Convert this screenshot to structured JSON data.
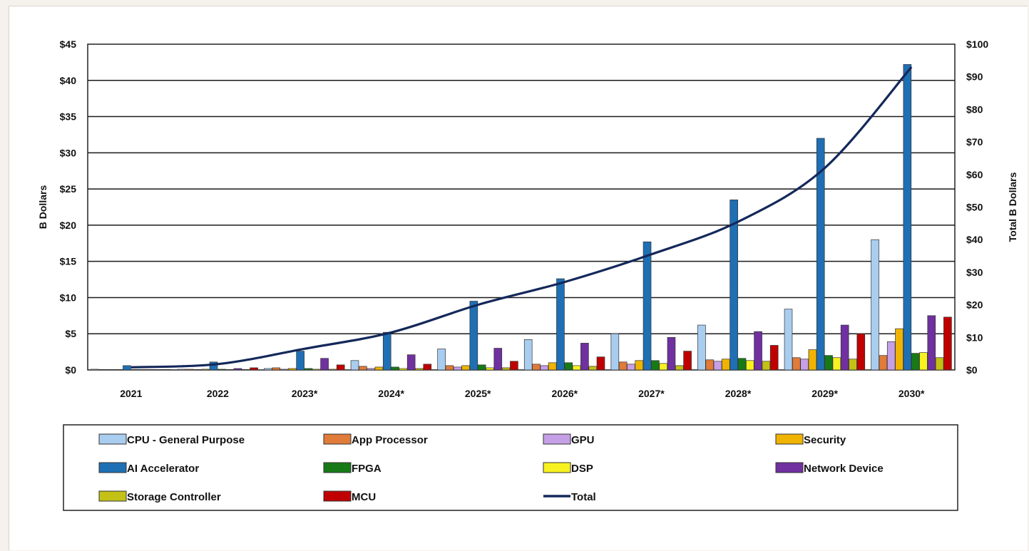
{
  "chart_data": {
    "type": "bar",
    "title": "",
    "xlabel": "",
    "ylabel": "B Dollars",
    "y2label": "Total B Dollars",
    "ylim": [
      0,
      45
    ],
    "y2lim": [
      0,
      100
    ],
    "yticks": [
      "$0",
      "$5",
      "$10",
      "$15",
      "$20",
      "$25",
      "$30",
      "$35",
      "$40",
      "$45"
    ],
    "y2ticks": [
      "$0",
      "$10",
      "$20",
      "$30",
      "$40",
      "$50",
      "$60",
      "$70",
      "$80",
      "$90",
      "$100"
    ],
    "grid": true,
    "legend_position": "bottom",
    "categories": [
      "2021",
      "2022",
      "2023*",
      "2024*",
      "2025*",
      "2026*",
      "2027*",
      "2028*",
      "2029*",
      "2030*"
    ],
    "series": [
      {
        "name": "CPU - General Purpose",
        "color": "#a9cdef",
        "values": [
          0.1,
          0.1,
          0.2,
          1.3,
          2.9,
          4.2,
          5.0,
          6.2,
          8.4,
          18.0
        ]
      },
      {
        "name": "AI Accelerator",
        "color": "#1f6fb4",
        "values": [
          0.6,
          1.1,
          2.6,
          5.2,
          9.5,
          12.6,
          17.7,
          23.5,
          32.0,
          42.2
        ]
      },
      {
        "name": "Storage Controller",
        "color": "#c3c116",
        "values": [
          0.05,
          0.05,
          0.1,
          0.2,
          0.3,
          0.5,
          0.6,
          1.2,
          1.5,
          1.7
        ]
      },
      {
        "name": "App Processor",
        "color": "#e07b39",
        "values": [
          0.05,
          0.1,
          0.3,
          0.5,
          0.6,
          0.8,
          1.1,
          1.4,
          1.7,
          2.0
        ]
      },
      {
        "name": "FPGA",
        "color": "#177a17",
        "values": [
          0.05,
          0.1,
          0.2,
          0.4,
          0.7,
          1.0,
          1.3,
          1.6,
          2.0,
          2.3
        ]
      },
      {
        "name": "MCU",
        "color": "#c00000",
        "values": [
          0.05,
          0.3,
          0.7,
          0.8,
          1.2,
          1.8,
          2.6,
          3.4,
          5.0,
          7.3
        ]
      },
      {
        "name": "GPU",
        "color": "#c6a0e6",
        "values": [
          0.05,
          0.05,
          0.1,
          0.2,
          0.4,
          0.6,
          0.8,
          1.2,
          1.5,
          3.9
        ]
      },
      {
        "name": "DSP",
        "color": "#f7f220",
        "values": [
          0.05,
          0.05,
          0.1,
          0.2,
          0.3,
          0.6,
          0.9,
          1.3,
          1.7,
          2.4
        ]
      },
      {
        "name": "Security",
        "color": "#f0b400",
        "values": [
          0.05,
          0.1,
          0.2,
          0.4,
          0.6,
          1.0,
          1.3,
          1.5,
          2.8,
          5.7
        ]
      },
      {
        "name": "Network Device",
        "color": "#7030a0",
        "values": [
          0.05,
          0.2,
          1.6,
          2.1,
          3.0,
          3.7,
          4.5,
          5.3,
          6.2,
          7.5
        ]
      }
    ],
    "bar_order": [
      "CPU - General Purpose",
      "App Processor",
      "GPU",
      "Security",
      "AI Accelerator",
      "FPGA",
      "DSP",
      "Network Device",
      "Storage Controller",
      "MCU"
    ],
    "line": {
      "name": "Total",
      "color": "#14285a",
      "axis": "right",
      "values": [
        0.8,
        1.8,
        6.5,
        11.5,
        20.0,
        27.0,
        35.5,
        45.5,
        62.0,
        93.0
      ]
    },
    "legend": [
      "CPU - General Purpose",
      "App Processor",
      "GPU",
      "Security",
      "AI Accelerator",
      "FPGA",
      "DSP",
      "Network Device",
      "Storage Controller",
      "MCU",
      "Total"
    ]
  }
}
